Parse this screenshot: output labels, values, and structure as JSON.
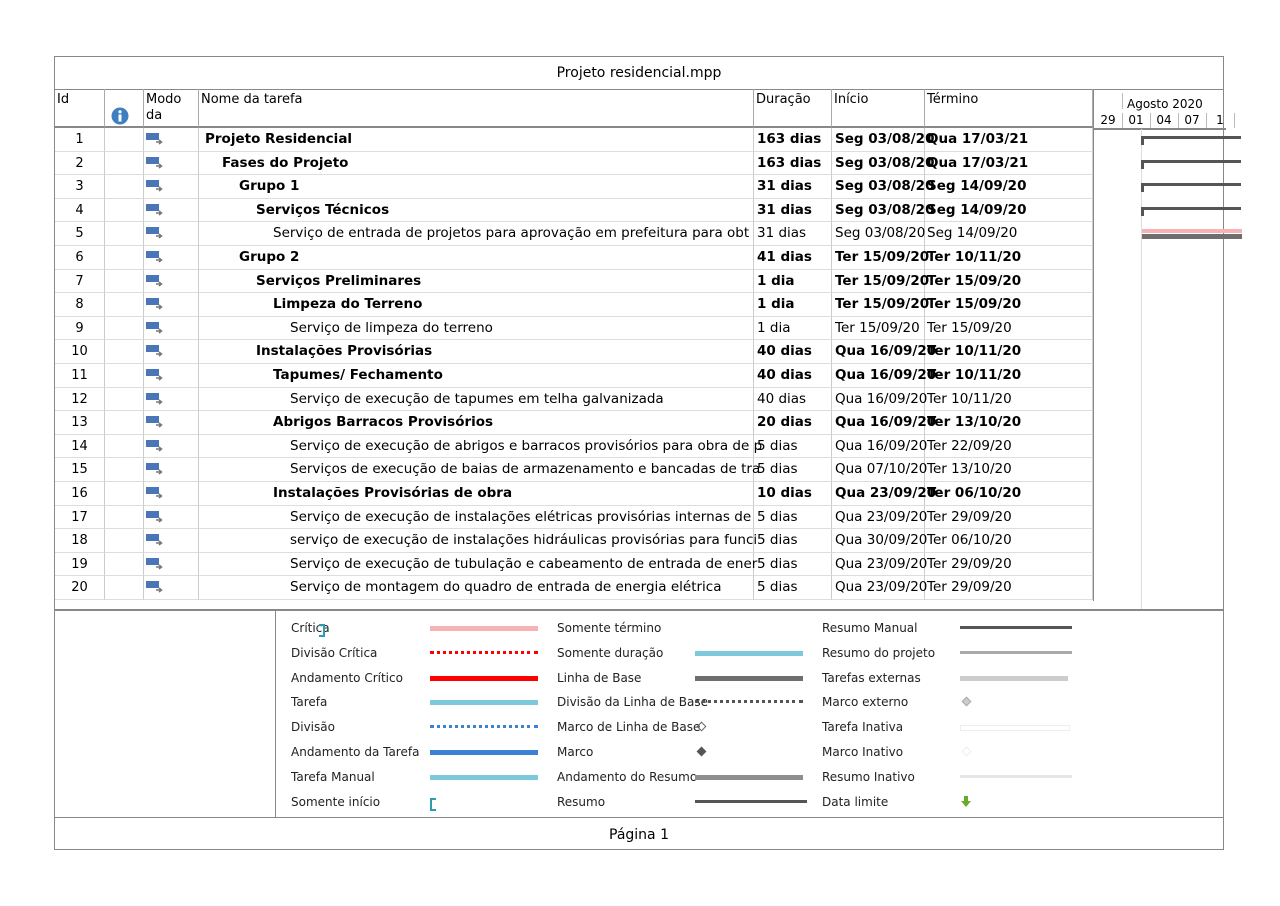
{
  "title": "Projeto residencial.mpp",
  "headers": {
    "id": "Id",
    "info_icon": "info-icon",
    "mode": "Modo da",
    "name": "Nome da tarefa",
    "duration": "Duração",
    "start": "Início",
    "finish": "Término"
  },
  "timescale": {
    "month": "Agosto 2020",
    "days": [
      "29",
      "01",
      "04",
      "07",
      "1"
    ]
  },
  "tasks": [
    {
      "id": "1",
      "level": 0,
      "bold": true,
      "name": "Projeto Residencial",
      "duration": "163 dias",
      "start": "Seg 03/08/20",
      "finish": "Qua 17/03/21"
    },
    {
      "id": "2",
      "level": 1,
      "bold": true,
      "name": "Fases do Projeto",
      "duration": "163 dias",
      "start": "Seg 03/08/20",
      "finish": "Qua 17/03/21"
    },
    {
      "id": "3",
      "level": 2,
      "bold": true,
      "name": "Grupo 1",
      "duration": "31 dias",
      "start": "Seg 03/08/20",
      "finish": "Seg 14/09/20"
    },
    {
      "id": "4",
      "level": 3,
      "bold": true,
      "name": "Serviços Técnicos",
      "duration": "31 dias",
      "start": "Seg 03/08/20",
      "finish": "Seg 14/09/20"
    },
    {
      "id": "5",
      "level": 4,
      "bold": false,
      "name": "Serviço de entrada de projetos para aprovação em prefeitura para obt",
      "duration": "31 dias",
      "start": "Seg 03/08/20",
      "finish": "Seg 14/09/20"
    },
    {
      "id": "6",
      "level": 2,
      "bold": true,
      "name": "Grupo 2",
      "duration": "41 dias",
      "start": "Ter 15/09/20",
      "finish": "Ter 10/11/20"
    },
    {
      "id": "7",
      "level": 3,
      "bold": true,
      "name": "Serviços Preliminares",
      "duration": "1 dia",
      "start": "Ter 15/09/20",
      "finish": "Ter 15/09/20"
    },
    {
      "id": "8",
      "level": 4,
      "bold": true,
      "name": "Limpeza do Terreno",
      "duration": "1 dia",
      "start": "Ter 15/09/20",
      "finish": "Ter 15/09/20"
    },
    {
      "id": "9",
      "level": 5,
      "bold": false,
      "name": "Serviço de limpeza do terreno",
      "duration": "1 dia",
      "start": "Ter 15/09/20",
      "finish": "Ter 15/09/20"
    },
    {
      "id": "10",
      "level": 3,
      "bold": true,
      "name": "Instalações Provisórias",
      "duration": "40 dias",
      "start": "Qua 16/09/20",
      "finish": "Ter 10/11/20"
    },
    {
      "id": "11",
      "level": 4,
      "bold": true,
      "name": "Tapumes/ Fechamento",
      "duration": "40 dias",
      "start": "Qua 16/09/20",
      "finish": "Ter 10/11/20"
    },
    {
      "id": "12",
      "level": 5,
      "bold": false,
      "name": "Serviço de execução de tapumes em telha galvanizada",
      "duration": "40 dias",
      "start": "Qua 16/09/20",
      "finish": "Ter 10/11/20"
    },
    {
      "id": "13",
      "level": 4,
      "bold": true,
      "name": "Abrigos Barracos Provisórios",
      "duration": "20 dias",
      "start": "Qua 16/09/20",
      "finish": "Ter 13/10/20"
    },
    {
      "id": "14",
      "level": 5,
      "bold": false,
      "name": "Serviço de execução de abrigos e barracos provisórios para obra de p",
      "duration": "5 dias",
      "start": "Qua 16/09/20",
      "finish": "Ter 22/09/20"
    },
    {
      "id": "15",
      "level": 5,
      "bold": false,
      "name": "Serviços de execução de baias de armazenamento e bancadas de tra",
      "duration": "5 dias",
      "start": "Qua 07/10/20",
      "finish": "Ter 13/10/20"
    },
    {
      "id": "16",
      "level": 4,
      "bold": true,
      "name": "Instalações Provisórias de obra",
      "duration": "10 dias",
      "start": "Qua 23/09/20",
      "finish": "Ter 06/10/20"
    },
    {
      "id": "17",
      "level": 5,
      "bold": false,
      "name": "Serviço de execução de instalações elétricas provisórias internas de",
      "duration": "5 dias",
      "start": "Qua 23/09/20",
      "finish": "Ter 29/09/20"
    },
    {
      "id": "18",
      "level": 5,
      "bold": false,
      "name": "serviço de execução de instalações hidráulicas provisórias para funci",
      "duration": "5 dias",
      "start": "Qua 30/09/20",
      "finish": "Ter 06/10/20"
    },
    {
      "id": "19",
      "level": 5,
      "bold": false,
      "name": "Serviço de execução de tubulação e cabeamento de entrada de ener",
      "duration": "5 dias",
      "start": "Qua 23/09/20",
      "finish": "Ter 29/09/20"
    },
    {
      "id": "20",
      "level": 5,
      "bold": false,
      "name": "Serviço de montagem do quadro de entrada de energia elétrica",
      "duration": "5 dias",
      "start": "Qua 23/09/20",
      "finish": "Ter 29/09/20"
    }
  ],
  "legend": [
    [
      "Crítica",
      "Divisão Crítica",
      "Andamento Crítico",
      "Tarefa",
      "Divisão",
      "Andamento da Tarefa",
      "Tarefa Manual",
      "Somente início"
    ],
    [
      "Somente término",
      "Somente duração",
      "Linha de Base",
      "Divisão da Linha de Base",
      "Marco de Linha de Base",
      "Marco",
      "Andamento do Resumo",
      "Resumo"
    ],
    [
      "Resumo Manual",
      "Resumo do projeto",
      "Tarefas externas",
      "Marco externo",
      "Tarefa Inativa",
      "Marco Inativo",
      "Resumo Inativo",
      "Data limite"
    ]
  ],
  "colors": {
    "critical": "#f7b2b4",
    "critical_progress": "#ff0000",
    "task": "#7ec8dc",
    "task_progress": "#3b82d4",
    "baseline": "#6e6e6e",
    "summary": "#555555",
    "deadline": "#6aaa2a"
  },
  "footer": "Página 1"
}
